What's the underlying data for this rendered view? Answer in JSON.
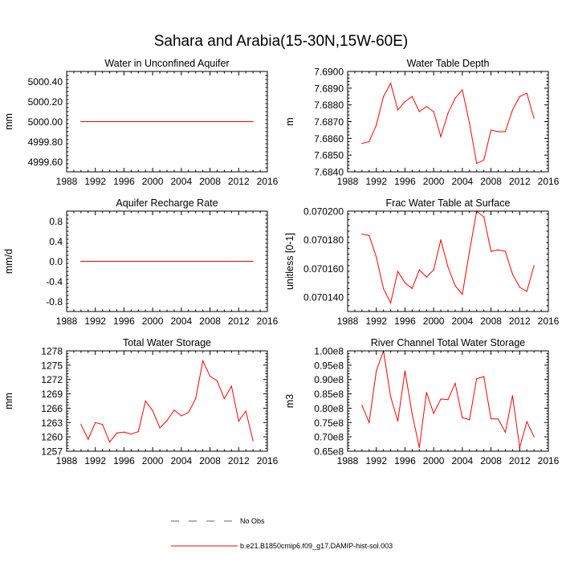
{
  "figure": {
    "title": "Sahara and Arabia(15-30N,15W-60E)",
    "legend": [
      {
        "label": "No Obs",
        "style": "dashed",
        "color": "#5a5aa8"
      },
      {
        "label": "b.e21.B1850cmip6.f09_g17.DAMIP-hist-sol.003",
        "style": "solid",
        "color": "#ff0000"
      }
    ]
  },
  "chart_data": [
    {
      "type": "line",
      "title": "Water in Unconfined Aquifer",
      "ylabel": "mm",
      "xlim": [
        1988,
        2016
      ],
      "xticks": [
        1988,
        1992,
        1996,
        2000,
        2004,
        2008,
        2012,
        2016
      ],
      "ylim": [
        4999.5,
        5000.5
      ],
      "yticks": [
        4999.6,
        4999.8,
        5000.0,
        5000.2,
        5000.4
      ],
      "ytick_labels": [
        "4999.60",
        "4999.80",
        "5000.00",
        "5000.20",
        "5000.40"
      ],
      "x": [
        1990,
        1991,
        1992,
        1993,
        1994,
        1995,
        1996,
        1997,
        1998,
        1999,
        2000,
        2001,
        2002,
        2003,
        2004,
        2005,
        2006,
        2007,
        2008,
        2009,
        2010,
        2011,
        2012,
        2013,
        2014
      ],
      "series": [
        {
          "color": "#ff0000",
          "values": [
            5000,
            5000,
            5000,
            5000,
            5000,
            5000,
            5000,
            5000,
            5000,
            5000,
            5000,
            5000,
            5000,
            5000,
            5000,
            5000,
            5000,
            5000,
            5000,
            5000,
            5000,
            5000,
            5000,
            5000,
            5000
          ]
        }
      ]
    },
    {
      "type": "line",
      "title": "Water Table Depth",
      "ylabel": "m",
      "xlim": [
        1988,
        2016
      ],
      "xticks": [
        1988,
        1992,
        1996,
        2000,
        2004,
        2008,
        2012,
        2016
      ],
      "ylim": [
        7.684,
        7.69
      ],
      "yticks": [
        7.684,
        7.685,
        7.686,
        7.687,
        7.688,
        7.689,
        7.69
      ],
      "ytick_labels": [
        "7.6840",
        "7.6850",
        "7.6860",
        "7.6870",
        "7.6880",
        "7.6890",
        "7.6900"
      ],
      "x": [
        1990,
        1991,
        1992,
        1993,
        1994,
        1995,
        1996,
        1997,
        1998,
        1999,
        2000,
        2001,
        2002,
        2003,
        2004,
        2005,
        2006,
        2007,
        2008,
        2009,
        2010,
        2011,
        2012,
        2013,
        2014
      ],
      "series": [
        {
          "color": "#ff0000",
          "values": [
            7.6857,
            7.6858,
            7.6868,
            7.6885,
            7.6893,
            7.6877,
            7.6882,
            7.6885,
            7.6876,
            7.6879,
            7.6876,
            7.6861,
            7.6875,
            7.6884,
            7.6889,
            7.6869,
            7.6845,
            7.6847,
            7.6865,
            7.6864,
            7.6864,
            7.6877,
            7.6885,
            7.6887,
            7.6872
          ]
        }
      ]
    },
    {
      "type": "line",
      "title": "Aquifer Recharge Rate",
      "ylabel": "mm/d",
      "xlim": [
        1988,
        2016
      ],
      "xticks": [
        1988,
        1992,
        1996,
        2000,
        2004,
        2008,
        2012,
        2016
      ],
      "ylim": [
        -1.0,
        1.0
      ],
      "yticks": [
        -0.8,
        -0.4,
        0.0,
        0.4,
        0.8
      ],
      "ytick_labels": [
        "-0.8",
        "-0.4",
        "0.0",
        "0.4",
        "0.8"
      ],
      "x": [
        1990,
        1991,
        1992,
        1993,
        1994,
        1995,
        1996,
        1997,
        1998,
        1999,
        2000,
        2001,
        2002,
        2003,
        2004,
        2005,
        2006,
        2007,
        2008,
        2009,
        2010,
        2011,
        2012,
        2013,
        2014
      ],
      "series": [
        {
          "color": "#ff0000",
          "values": [
            0,
            0,
            0,
            0,
            0,
            0,
            0,
            0,
            0,
            0,
            0,
            0,
            0,
            0,
            0,
            0,
            0,
            0,
            0,
            0,
            0,
            0,
            0,
            0,
            0
          ]
        }
      ]
    },
    {
      "type": "line",
      "title": "Frac Water Table at Surface",
      "ylabel": "unitless [0-1]",
      "xlim": [
        1988,
        2016
      ],
      "xticks": [
        1988,
        1992,
        1996,
        2000,
        2004,
        2008,
        2012,
        2016
      ],
      "ylim": [
        0.07013,
        0.0702
      ],
      "yticks": [
        0.07014,
        0.07016,
        0.07018,
        0.0702
      ],
      "ytick_labels": [
        "0.070140",
        "0.070160",
        "0.070180",
        "0.070200"
      ],
      "x": [
        1990,
        1991,
        1992,
        1993,
        1994,
        1995,
        1996,
        1997,
        1998,
        1999,
        2000,
        2001,
        2002,
        2003,
        2004,
        2005,
        2006,
        2007,
        2008,
        2009,
        2010,
        2011,
        2012,
        2013,
        2014
      ],
      "series": [
        {
          "color": "#ff0000",
          "values": [
            0.070184,
            0.070183,
            0.070168,
            0.070146,
            0.070136,
            0.070158,
            0.07015,
            0.070146,
            0.070159,
            0.070154,
            0.070159,
            0.07018,
            0.070161,
            0.070148,
            0.070142,
            0.070172,
            0.0702,
            0.070196,
            0.070172,
            0.070173,
            0.070172,
            0.070156,
            0.070147,
            0.070144,
            0.070162
          ]
        }
      ]
    },
    {
      "type": "line",
      "title": "Total Water Storage",
      "ylabel": "mm",
      "xlim": [
        1988,
        2016
      ],
      "xticks": [
        1988,
        1992,
        1996,
        2000,
        2004,
        2008,
        2012,
        2016
      ],
      "ylim": [
        1257,
        1278
      ],
      "yticks": [
        1257,
        1260,
        1263,
        1266,
        1269,
        1272,
        1275,
        1278
      ],
      "ytick_labels": [
        "1257",
        "1260",
        "1263",
        "1266",
        "1269",
        "1272",
        "1275",
        "1278"
      ],
      "x": [
        1990,
        1991,
        1992,
        1993,
        1994,
        1995,
        1996,
        1997,
        1998,
        1999,
        2000,
        2001,
        2002,
        2003,
        2004,
        2005,
        2006,
        2007,
        2008,
        2009,
        2010,
        2011,
        2012,
        2013,
        2014
      ],
      "series": [
        {
          "color": "#ff0000",
          "values": [
            1262.6,
            1259.5,
            1263.0,
            1262.6,
            1258.9,
            1260.8,
            1261.0,
            1260.6,
            1261.1,
            1267.5,
            1265.5,
            1261.9,
            1263.4,
            1265.6,
            1264.4,
            1265.1,
            1268.0,
            1275.9,
            1272.7,
            1271.7,
            1268.0,
            1270.6,
            1263.3,
            1265.4,
            1259.2
          ]
        }
      ]
    },
    {
      "type": "line",
      "title": "River Channel Total Water Storage",
      "ylabel": "m3",
      "xlim": [
        1988,
        2016
      ],
      "xticks": [
        1988,
        1992,
        1996,
        2000,
        2004,
        2008,
        2012,
        2016
      ],
      "ylim": [
        65000000.0,
        100000000.0
      ],
      "yticks": [
        65000000.0,
        70000000.0,
        75000000.0,
        80000000.0,
        85000000.0,
        90000000.0,
        95000000.0,
        100000000.0
      ],
      "ytick_labels": [
        "0.65e8",
        "0.70e8",
        "0.75e8",
        "0.80e8",
        "0.85e8",
        "0.90e8",
        "0.95e8",
        "1.00e8"
      ],
      "x": [
        1990,
        1991,
        1992,
        1993,
        1994,
        1995,
        1996,
        1997,
        1998,
        1999,
        2000,
        2001,
        2002,
        2003,
        2004,
        2005,
        2006,
        2007,
        2008,
        2009,
        2010,
        2011,
        2012,
        2013,
        2014
      ],
      "series": [
        {
          "color": "#ff0000",
          "values": [
            81000000.0,
            75000000.0,
            93000000.0,
            100000000.0,
            84000000.0,
            75500000.0,
            93000000.0,
            78000000.0,
            66300000.0,
            85500000.0,
            78200000.0,
            83200000.0,
            83000000.0,
            88700000.0,
            76700000.0,
            76000000.0,
            90300000.0,
            91000000.0,
            76300000.0,
            76200000.0,
            71600000.0,
            84400000.0,
            66300000.0,
            75300000.0,
            70000000.0
          ]
        }
      ]
    }
  ]
}
